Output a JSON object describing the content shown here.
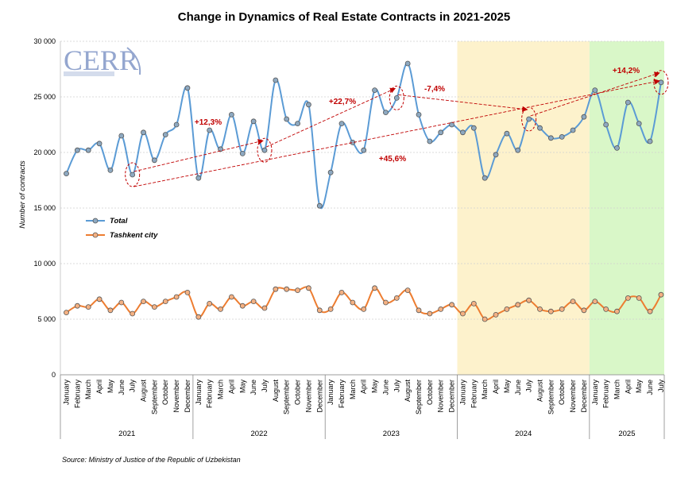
{
  "chart_data": {
    "type": "line",
    "title": "Change in Dynamics of Real Estate Contracts in 2021-2025",
    "ylabel": "Number of contracts",
    "ylim": [
      0,
      30000
    ],
    "yticks": [
      0,
      5000,
      10000,
      15000,
      20000,
      25000,
      30000
    ],
    "ytick_labels": [
      "0",
      "5 000",
      "10 000",
      "15 000",
      "20 000",
      "25 000",
      "30 000"
    ],
    "grid": "horizontal",
    "legend_position": "left-middle",
    "months": [
      "January",
      "February",
      "March",
      "April",
      "May",
      "June",
      "July",
      "August",
      "September",
      "October",
      "November",
      "December"
    ],
    "years": [
      {
        "label": "2021",
        "months": 12
      },
      {
        "label": "2022",
        "months": 12
      },
      {
        "label": "2023",
        "months": 12
      },
      {
        "label": "2024",
        "months": 12
      },
      {
        "label": "2025",
        "months": 7
      }
    ],
    "highlight_periods": [
      {
        "year": "2024",
        "color": "#fdf2cc"
      },
      {
        "year": "2025",
        "color": "#d9f7c8"
      }
    ],
    "series": [
      {
        "name": "Total",
        "color": "#5b9bd5",
        "marker_fill": "#8ea9c1",
        "values": [
          18100,
          20200,
          20200,
          20800,
          18400,
          21500,
          18000,
          21800,
          19300,
          21600,
          22500,
          25800,
          17700,
          22000,
          20300,
          23400,
          19900,
          22800,
          20200,
          26500,
          23000,
          22600,
          24300,
          15200,
          18200,
          22600,
          20900,
          20200,
          25600,
          23600,
          24900,
          28000,
          23400,
          21000,
          21800,
          22500,
          21800,
          22200,
          17700,
          19800,
          21700,
          20200,
          23000,
          22200,
          21300,
          21400,
          22000,
          23200,
          25600,
          22500,
          20400,
          24500,
          22600,
          21000,
          26300
        ]
      },
      {
        "name": "Tashkent city",
        "color": "#ed7d31",
        "marker_fill": "#f4b183",
        "values": [
          5600,
          6200,
          6100,
          6800,
          5800,
          6500,
          5500,
          6600,
          6100,
          6600,
          7000,
          7400,
          5200,
          6400,
          5900,
          7000,
          6200,
          6600,
          6000,
          7700,
          7700,
          7600,
          7800,
          5800,
          5900,
          7400,
          6500,
          5900,
          7800,
          6500,
          6900,
          7600,
          5800,
          5500,
          5900,
          6300,
          5500,
          6400,
          5000,
          5400,
          5900,
          6300,
          6700,
          5900,
          5700,
          5900,
          6600,
          5800,
          6600,
          5900,
          5700,
          6900,
          6900,
          5700,
          7200
        ]
      }
    ],
    "annotations": [
      {
        "text": "+12,3%",
        "from": 6,
        "to": 18
      },
      {
        "text": "+22,7%",
        "from": 18,
        "to": 30
      },
      {
        "text": "-7,4%",
        "from": 30,
        "to": 42
      },
      {
        "text": "+14,2%",
        "from": 42,
        "to": 54
      },
      {
        "text": "+45,6%",
        "from": 6,
        "to": 54
      }
    ],
    "source": "Source: Ministry of Justice of the Republic of Uzbekistan"
  }
}
